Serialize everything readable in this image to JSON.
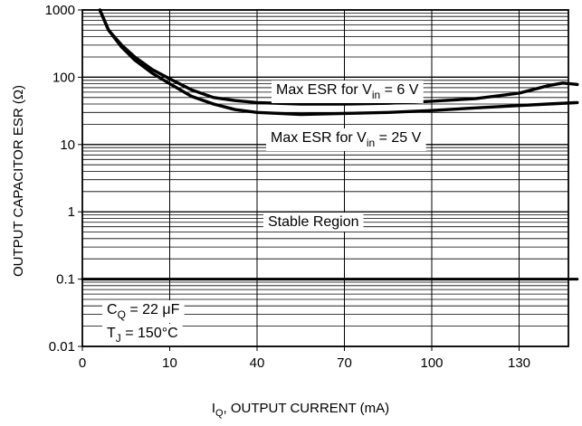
{
  "chart_data": {
    "type": "line",
    "title": "",
    "xlabel": {
      "main": "I",
      "sub": "Q",
      "rest": ", OUTPUT CURRENT (mA)"
    },
    "ylabel": "OUTPUT CAPACITOR ESR (Ω)",
    "x_ticks": [
      "0",
      "10",
      "40",
      "70",
      "100",
      "130"
    ],
    "y_ticks": [
      "1000",
      "100",
      "10",
      "1",
      "0.1",
      "0.01"
    ],
    "y_scale": "log",
    "x_note": "non-uniform x axis: 0 → 10 → 40 → 70 → 100 → 130 (equal spacing per labeled tick)",
    "xlim": [
      0,
      150
    ],
    "ylim": [
      0.01,
      1000
    ],
    "grid": true,
    "series": [
      {
        "name": "Max ESR for V_in = 6 V",
        "label": {
          "prefix": "Max ESR for V",
          "sub": "in",
          "suffix": " = 6 V"
        },
        "points": [
          [
            2.0,
            1000
          ],
          [
            3.0,
            500
          ],
          [
            4.5,
            300
          ],
          [
            6.0,
            200
          ],
          [
            8.0,
            130
          ],
          [
            10.0,
            95
          ],
          [
            17.5,
            65
          ],
          [
            25.0,
            50
          ],
          [
            32.5,
            45
          ],
          [
            40.0,
            42
          ],
          [
            55.0,
            40
          ],
          [
            70.0,
            40
          ],
          [
            85.0,
            41
          ],
          [
            100.0,
            44
          ],
          [
            115.0,
            48
          ],
          [
            130.0,
            58
          ],
          [
            140.0,
            75
          ],
          [
            145.0,
            82
          ],
          [
            150.0,
            78
          ]
        ]
      },
      {
        "name": "Max ESR for V_in = 25 V",
        "label": {
          "prefix": "Max ESR for V",
          "sub": "in",
          "suffix": " = 25 V"
        },
        "points": [
          [
            2.0,
            1000
          ],
          [
            3.0,
            500
          ],
          [
            4.5,
            280
          ],
          [
            6.0,
            180
          ],
          [
            8.0,
            115
          ],
          [
            10.0,
            80
          ],
          [
            17.5,
            52
          ],
          [
            25.0,
            40
          ],
          [
            32.5,
            33
          ],
          [
            40.0,
            30
          ],
          [
            55.0,
            28
          ],
          [
            70.0,
            29
          ],
          [
            85.0,
            30
          ],
          [
            100.0,
            32
          ],
          [
            115.0,
            35
          ],
          [
            130.0,
            38
          ],
          [
            140.0,
            40
          ],
          [
            150.0,
            42
          ]
        ]
      },
      {
        "name": "lower boundary",
        "points": [
          [
            0,
            0.1
          ],
          [
            150,
            0.1
          ]
        ]
      }
    ],
    "annotations": {
      "stable_region": "Stable Region",
      "cq": {
        "prefix": "C",
        "sub": "Q",
        "suffix": " = 22 μF"
      },
      "tj": {
        "prefix": "T",
        "sub": "J",
        "suffix": " = 150°C"
      }
    }
  }
}
